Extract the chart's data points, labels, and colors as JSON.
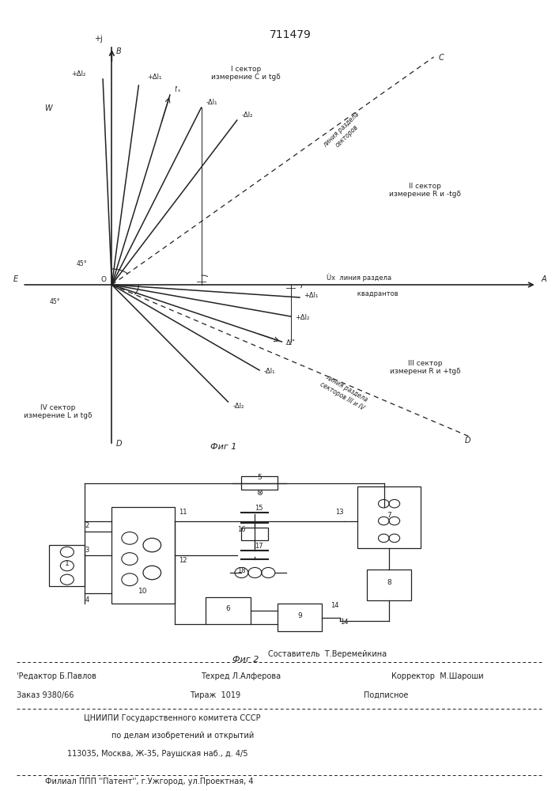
{
  "title": "711479",
  "bg_color": "#ffffff",
  "line_color": "#222222",
  "fig1_caption": "Фиг 1",
  "fig2_caption": "Фиг 2",
  "sector_I_label": "I сектор\nизмерение С и tgδ",
  "sector_II_label": "II сектор\nизмерение R и -tgδ",
  "sector_III_label": "III сектор\nизмерени R и +tgδ",
  "sector_IV_label": "IV сектор\nизмерение L и tgδ",
  "divider_label_1": "линия раздела\nсекторов",
  "divider_label_2": "линия раздела\nсекторов III и IV",
  "ux_label": "Ùx  линия раздела\n      квадрантов",
  "footer_lines": [
    "Составитель Т.Веремейкина",
    "'Редактор Б.Павлов   Техред Л.Алферова       Корректор М.Шароши",
    "Заказ 9380/66        Тираж  1019               Подписное",
    "ЦНИИПИ Государственного комитета СССР",
    "по делам изобретений и открытий",
    "113035, Москва, Ж-35, Раушская наб., д. 4/5",
    "Филиал ППП ''Патент'', г.Ужгород, ул.Проектная, 4"
  ]
}
